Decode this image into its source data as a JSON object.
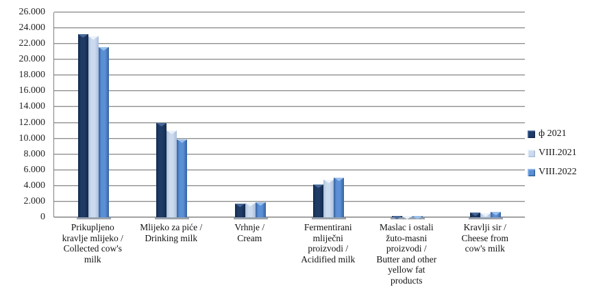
{
  "chart_data": {
    "type": "bar",
    "title": "",
    "xlabel": "",
    "ylabel": "",
    "ylim": [
      0,
      26000
    ],
    "ytick_step": 2000,
    "ytick_labels": [
      "0",
      "2.000",
      "4.000",
      "6.000",
      "8.000",
      "10.000",
      "12.000",
      "14.000",
      "16.000",
      "18.000",
      "20.000",
      "22.000",
      "24.000",
      "26.000"
    ],
    "grid": true,
    "legend_position": "right",
    "gridline_color": "#8c8c8c",
    "axis_color": "#7f7f7f",
    "categories": [
      {
        "label": "Prikupljeno kravlje mlijeko / Collected cow's milk",
        "lines": [
          "Prikupljeno",
          "kravlje mlijeko /",
          "Collected cow's",
          "milk"
        ]
      },
      {
        "label": "Mlijeko za piće / Drinking milk",
        "lines": [
          "Mlijeko za piće /",
          "Drinking milk"
        ]
      },
      {
        "label": "Vrhnje / Cream",
        "lines": [
          "Vrhnje /",
          "Cream"
        ]
      },
      {
        "label": "Fermentirani mliječni proizvodi / Acidified milk",
        "lines": [
          "Fermentirani",
          "mliječni",
          "proizvodi /",
          "Acidified milk"
        ]
      },
      {
        "label": "Maslac i ostali žuto-masni proizvodi / Butter and other yellow fat products",
        "lines": [
          "Maslac i ostali",
          "žuto-masni",
          "proizvodi /",
          "Butter and other",
          "yellow fat",
          "products"
        ]
      },
      {
        "label": "Kravlji sir / Cheese from cow's milk",
        "lines": [
          "Kravlji sir /",
          "Cheese from",
          "cow's milk"
        ]
      }
    ],
    "series": [
      {
        "name": "ф 2021",
        "values": [
          23200,
          12000,
          1750,
          4200,
          150,
          600
        ],
        "color_main": "#1F3B66",
        "color_edge": "#132A4C",
        "color_highlight": "#4A6B9C"
      },
      {
        "name": "VIII.2021",
        "values": [
          23000,
          11000,
          1800,
          4800,
          150,
          550
        ],
        "color_main": "#CBDAEE",
        "color_edge": "#A9BED9",
        "color_highlight": "#EDF4FB"
      },
      {
        "name": "VIII.2022",
        "values": [
          21600,
          9900,
          1900,
          5000,
          170,
          700
        ],
        "color_main": "#5C90D6",
        "color_edge": "#35619F",
        "color_highlight": "#9DC3EC"
      }
    ]
  }
}
